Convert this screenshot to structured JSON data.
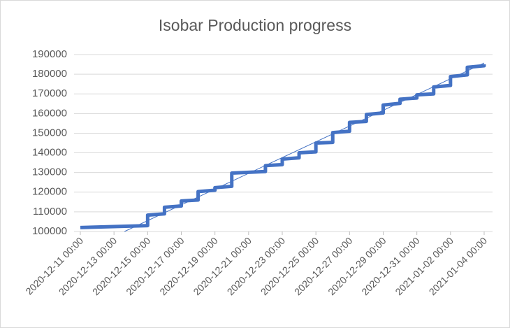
{
  "chart_data": {
    "type": "line",
    "title": "Isobar Production progress",
    "xlim": [
      "2020-12-11 00:00",
      "2021-01-04 00:00"
    ],
    "xticks": [
      "2020-12-11 00:00",
      "2020-12-13 00:00",
      "2020-12-15 00:00",
      "2020-12-17 00:00",
      "2020-12-19 00:00",
      "2020-12-21 00:00",
      "2020-12-23 00:00",
      "2020-12-25 00:00",
      "2020-12-27 00:00",
      "2020-12-29 00:00",
      "2020-12-31 00:00",
      "2021-01-02 00:00",
      "2021-01-04 00:00"
    ],
    "ylim": [
      100000,
      190000
    ],
    "yticks": [
      100000,
      110000,
      120000,
      130000,
      140000,
      150000,
      160000,
      170000,
      180000,
      190000
    ],
    "grid": true,
    "series": [
      {
        "color": "#4472c4",
        "width": 5,
        "x": [
          "2020-12-11 00:00",
          "2020-12-15 00:00",
          "2020-12-15 00:00",
          "2020-12-16 00:00",
          "2020-12-16 00:00",
          "2020-12-17 00:00",
          "2020-12-17 00:00",
          "2020-12-18 00:00",
          "2020-12-18 00:00",
          "2020-12-19 00:00",
          "2020-12-19 00:00",
          "2020-12-20 00:00",
          "2020-12-20 00:00",
          "2020-12-22 00:00",
          "2020-12-22 00:00",
          "2020-12-23 00:00",
          "2020-12-23 00:00",
          "2020-12-24 00:00",
          "2020-12-24 00:00",
          "2020-12-25 00:00",
          "2020-12-25 00:00",
          "2020-12-26 00:00",
          "2020-12-26 00:00",
          "2020-12-27 00:00",
          "2020-12-27 00:00",
          "2020-12-28 00:00",
          "2020-12-28 00:00",
          "2020-12-29 00:00",
          "2020-12-29 00:00",
          "2020-12-30 00:00",
          "2020-12-30 00:00",
          "2020-12-31 00:00",
          "2020-12-31 00:00",
          "2021-01-01 00:00",
          "2021-01-01 00:00",
          "2021-01-02 00:00",
          "2021-01-02 00:00",
          "2021-01-03 00:00",
          "2021-01-03 00:00",
          "2021-01-04 00:00",
          "2021-01-04 00:00"
        ],
        "values": [
          102000,
          103000,
          108300,
          109000,
          112300,
          113000,
          115500,
          116000,
          120300,
          121000,
          122300,
          123000,
          129700,
          130500,
          133500,
          134000,
          136800,
          137500,
          140000,
          140500,
          145000,
          145300,
          150300,
          151000,
          155500,
          156000,
          159500,
          160300,
          164300,
          165200,
          167300,
          167900,
          169500,
          170000,
          173500,
          174300,
          178800,
          179700,
          183500,
          184300,
          185000
        ]
      },
      {
        "color": "#4472c4",
        "width": 1,
        "trendline": true,
        "x": [
          "2020-12-13 15:00",
          "2021-01-04 00:00"
        ],
        "values": [
          100000,
          185700
        ]
      }
    ]
  }
}
